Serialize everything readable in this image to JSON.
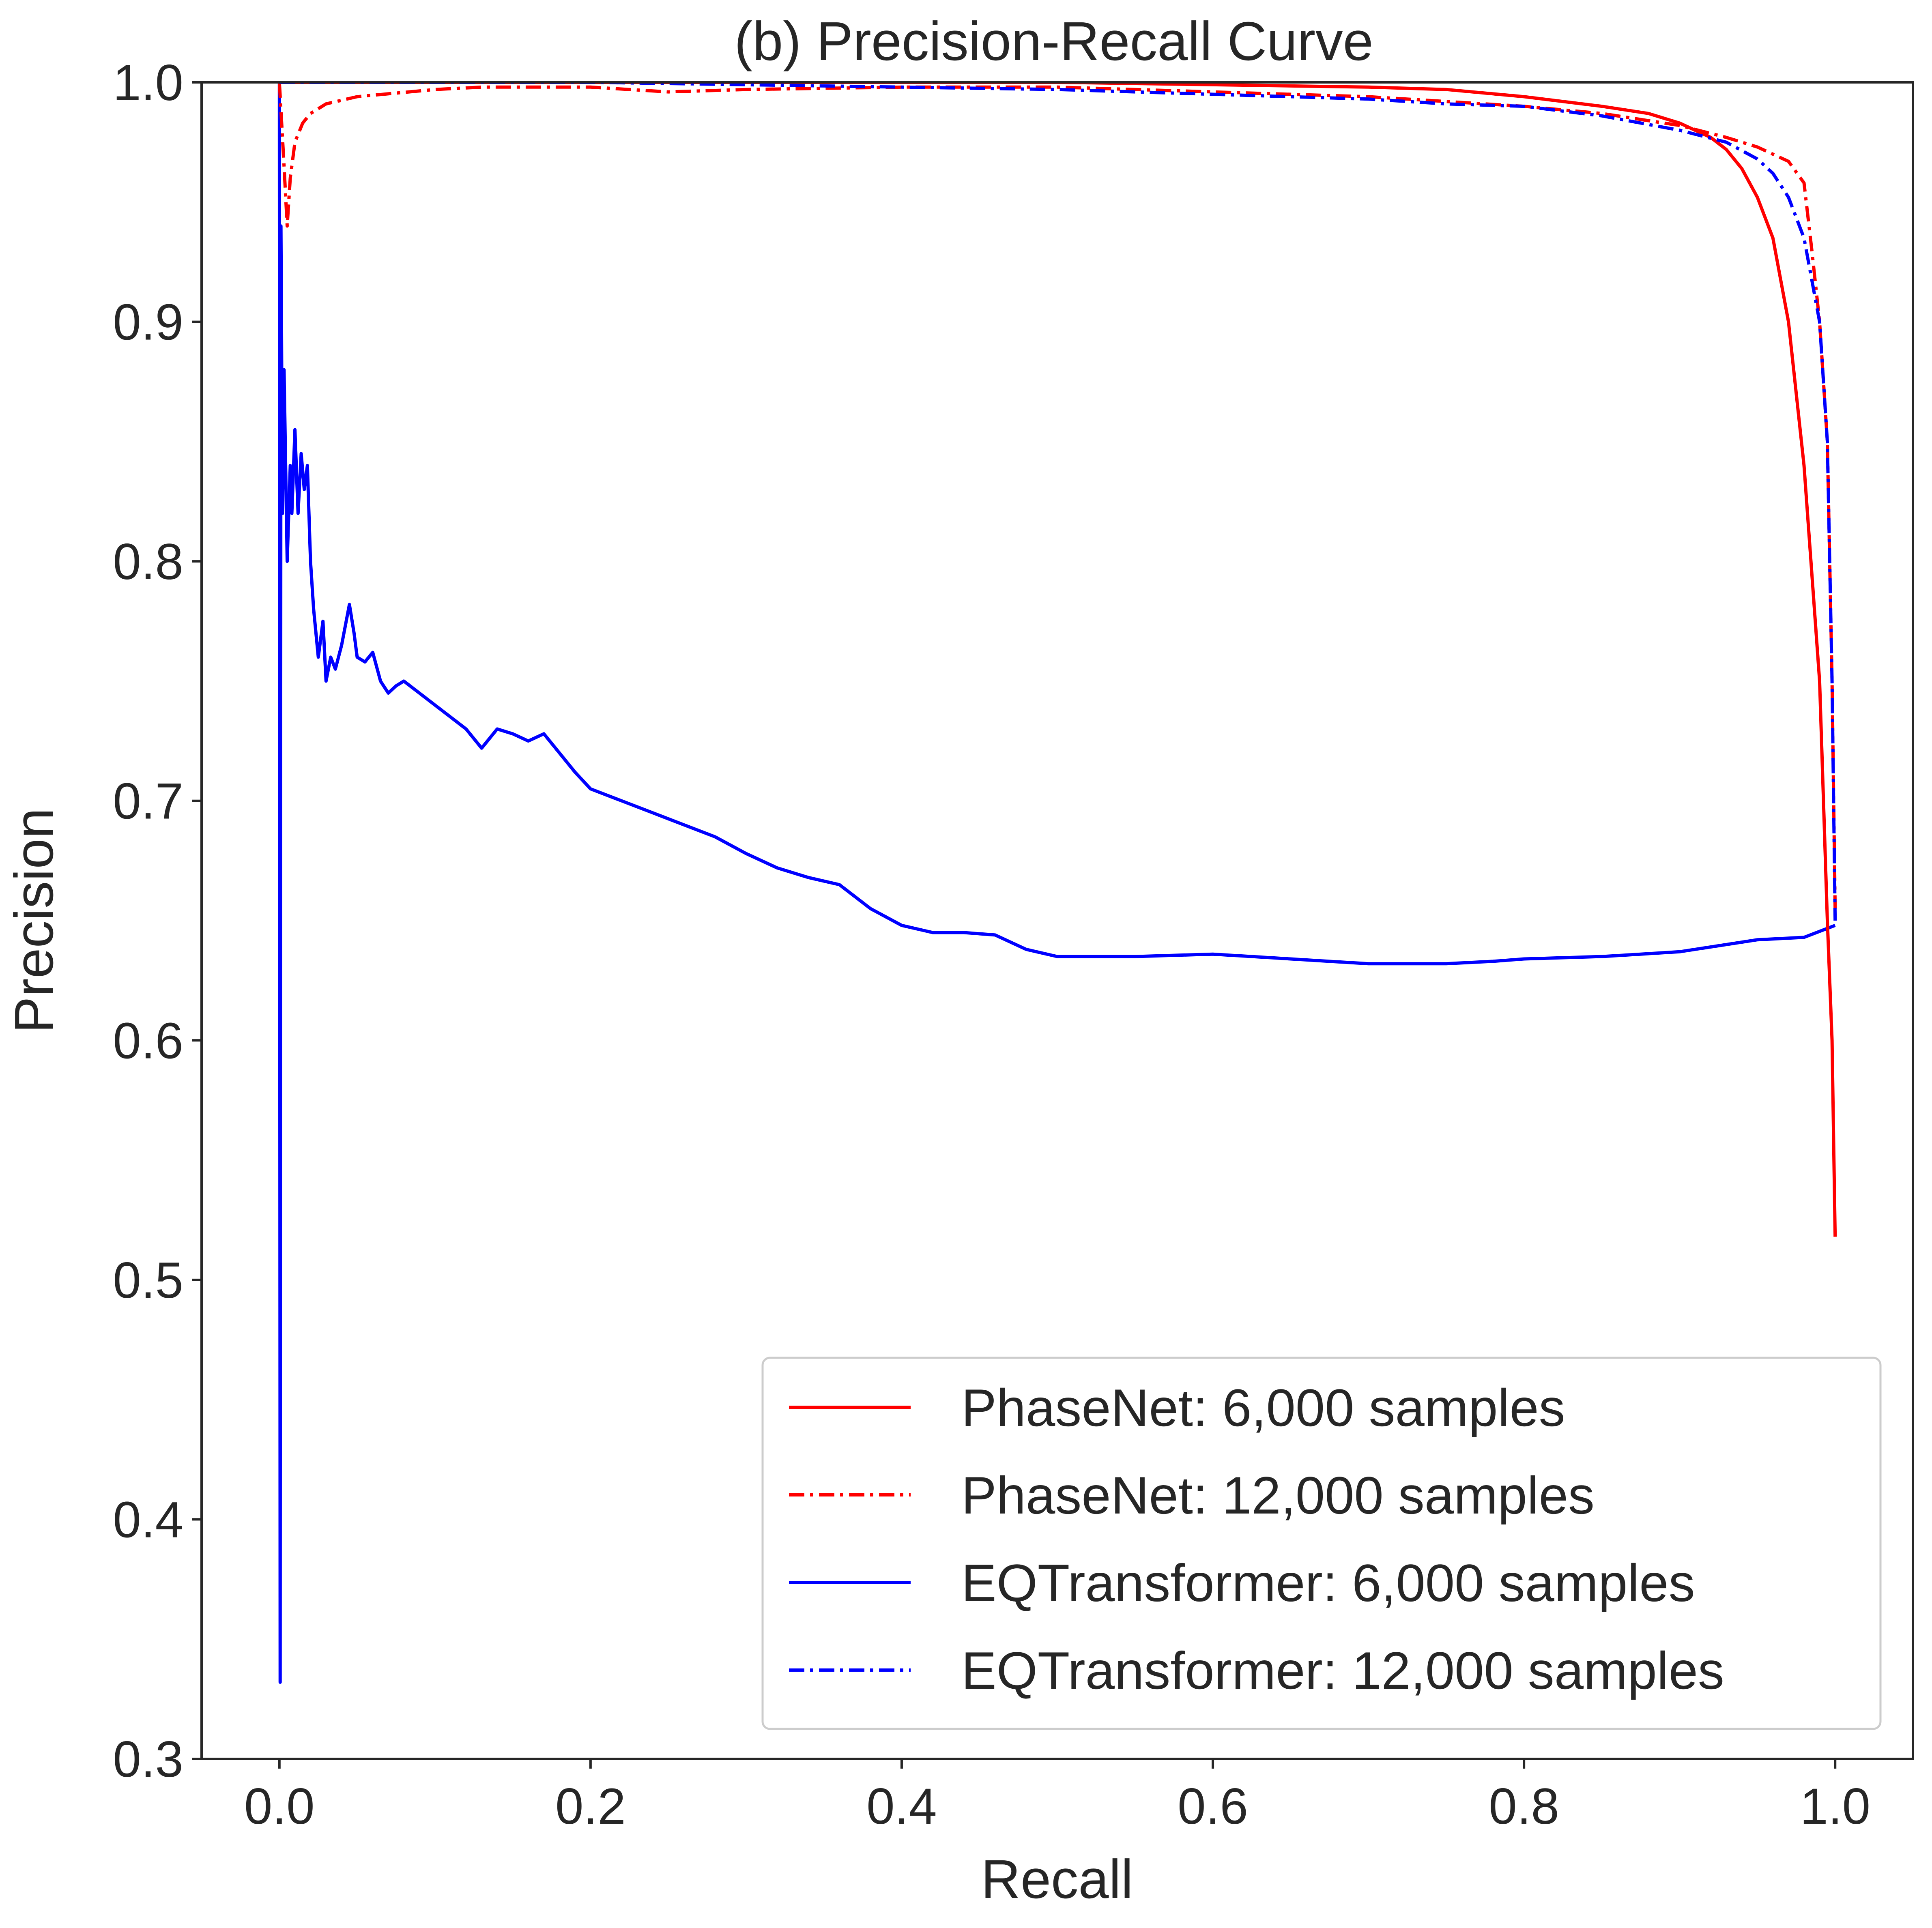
{
  "chart_data": {
    "type": "line",
    "title": "(b) Precision-Recall Curve",
    "xlabel": "Recall",
    "ylabel": "Precision",
    "xlim": [
      -0.05,
      1.05
    ],
    "ylim": [
      0.3,
      1.0
    ],
    "xticks": [
      0.0,
      0.2,
      0.4,
      0.6,
      0.8,
      1.0
    ],
    "xtick_labels": [
      "0.0",
      "0.2",
      "0.4",
      "0.6",
      "0.8",
      "1.0"
    ],
    "yticks": [
      0.3,
      0.4,
      0.5,
      0.6,
      0.7,
      0.8,
      0.9,
      1.0
    ],
    "ytick_labels": [
      "0.3",
      "0.4",
      "0.5",
      "0.6",
      "0.7",
      "0.8",
      "0.9",
      "1.0"
    ],
    "grid": false,
    "legend_position": "lower-right",
    "series": [
      {
        "name": "PhaseNet: 6,000 samples",
        "color": "#ff0000",
        "linestyle": "solid",
        "x": [
          0.0,
          0.05,
          0.1,
          0.2,
          0.3,
          0.4,
          0.5,
          0.6,
          0.7,
          0.75,
          0.8,
          0.85,
          0.88,
          0.9,
          0.91,
          0.92,
          0.93,
          0.94,
          0.95,
          0.96,
          0.97,
          0.98,
          0.99,
          0.995,
          0.998,
          1.0
        ],
        "y": [
          1.0,
          1.0,
          1.0,
          1.0,
          1.0,
          1.0,
          1.0,
          0.999,
          0.998,
          0.997,
          0.994,
          0.99,
          0.987,
          0.983,
          0.98,
          0.977,
          0.972,
          0.964,
          0.952,
          0.935,
          0.9,
          0.84,
          0.75,
          0.65,
          0.6,
          0.518
        ]
      },
      {
        "name": "PhaseNet: 12,000 samples",
        "color": "#ff0000",
        "linestyle": "dashdot",
        "x": [
          0.0,
          0.003,
          0.005,
          0.007,
          0.01,
          0.015,
          0.02,
          0.03,
          0.05,
          0.1,
          0.13,
          0.2,
          0.25,
          0.3,
          0.4,
          0.5,
          0.6,
          0.7,
          0.8,
          0.85,
          0.9,
          0.93,
          0.95,
          0.97,
          0.98,
          0.985,
          0.99,
          0.995,
          0.998,
          1.0
        ],
        "y": [
          1.0,
          0.965,
          0.94,
          0.96,
          0.975,
          0.983,
          0.987,
          0.991,
          0.994,
          0.997,
          0.998,
          0.998,
          0.996,
          0.997,
          0.998,
          0.998,
          0.996,
          0.994,
          0.99,
          0.987,
          0.982,
          0.977,
          0.973,
          0.967,
          0.958,
          0.93,
          0.9,
          0.85,
          0.75,
          0.655
        ]
      },
      {
        "name": "EQTransformer: 6,000 samples",
        "color": "#0000ff",
        "linestyle": "solid",
        "x": [
          0.0,
          0.0005,
          0.001,
          0.002,
          0.003,
          0.005,
          0.007,
          0.008,
          0.01,
          0.012,
          0.014,
          0.016,
          0.018,
          0.02,
          0.022,
          0.025,
          0.028,
          0.03,
          0.033,
          0.036,
          0.04,
          0.045,
          0.048,
          0.05,
          0.055,
          0.06,
          0.065,
          0.07,
          0.075,
          0.08,
          0.09,
          0.1,
          0.11,
          0.12,
          0.13,
          0.14,
          0.15,
          0.16,
          0.17,
          0.18,
          0.19,
          0.2,
          0.22,
          0.24,
          0.26,
          0.28,
          0.3,
          0.32,
          0.34,
          0.36,
          0.38,
          0.4,
          0.42,
          0.44,
          0.46,
          0.48,
          0.5,
          0.55,
          0.6,
          0.65,
          0.7,
          0.72,
          0.75,
          0.78,
          0.8,
          0.85,
          0.9,
          0.95,
          0.98,
          1.0
        ],
        "y": [
          1.0,
          0.332,
          0.94,
          0.82,
          0.88,
          0.8,
          0.84,
          0.82,
          0.855,
          0.82,
          0.845,
          0.83,
          0.84,
          0.8,
          0.78,
          0.76,
          0.775,
          0.75,
          0.76,
          0.755,
          0.765,
          0.782,
          0.77,
          0.76,
          0.758,
          0.762,
          0.75,
          0.745,
          0.748,
          0.75,
          0.745,
          0.74,
          0.735,
          0.73,
          0.722,
          0.73,
          0.728,
          0.725,
          0.728,
          0.72,
          0.712,
          0.705,
          0.7,
          0.695,
          0.69,
          0.685,
          0.678,
          0.672,
          0.668,
          0.665,
          0.655,
          0.648,
          0.645,
          0.645,
          0.644,
          0.638,
          0.635,
          0.635,
          0.636,
          0.634,
          0.632,
          0.632,
          0.632,
          0.633,
          0.634,
          0.635,
          0.637,
          0.642,
          0.643,
          0.648
        ]
      },
      {
        "name": "EQTransformer: 12,000 samples",
        "color": "#0000ff",
        "linestyle": "dashdot",
        "x": [
          0.0,
          0.05,
          0.1,
          0.2,
          0.3,
          0.4,
          0.5,
          0.6,
          0.7,
          0.75,
          0.8,
          0.85,
          0.9,
          0.93,
          0.95,
          0.96,
          0.97,
          0.98,
          0.99,
          0.995,
          0.998,
          1.0
        ],
        "y": [
          1.0,
          1.0,
          1.0,
          1.0,
          0.999,
          0.998,
          0.997,
          0.995,
          0.993,
          0.991,
          0.99,
          0.986,
          0.98,
          0.975,
          0.968,
          0.962,
          0.952,
          0.935,
          0.9,
          0.85,
          0.75,
          0.65
        ]
      }
    ]
  }
}
